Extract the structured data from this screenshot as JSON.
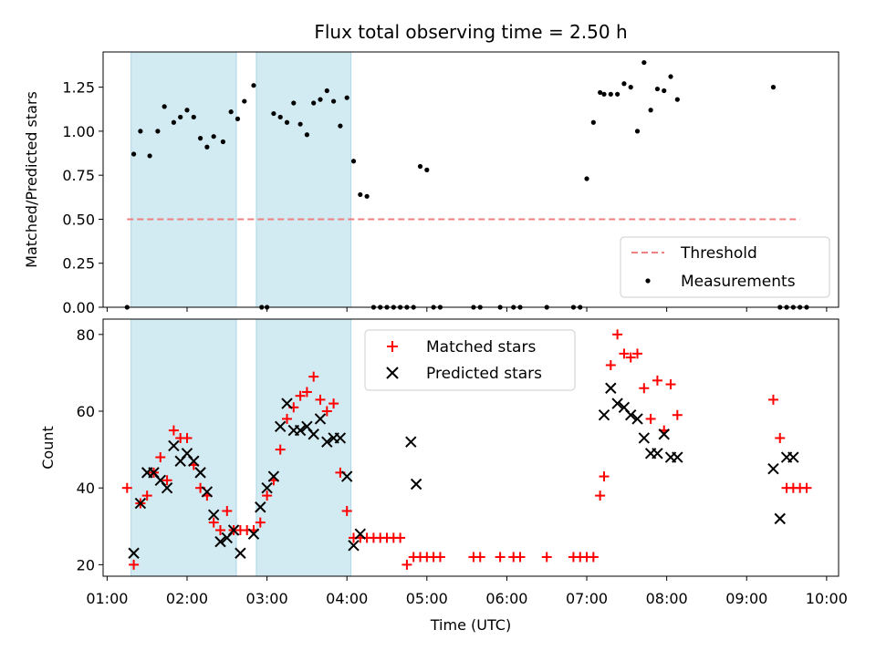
{
  "colors": {
    "threshold": "#f08080",
    "measurements": "#000000",
    "matched": "#ff0000",
    "predicted": "#000000",
    "shade": "#add8e6"
  },
  "chart_data": [
    {
      "type": "scatter",
      "title": "Flux total observing time = 2.50 h",
      "xlabel": "",
      "ylabel": "Matched/Predicted stars",
      "ylim": [
        0,
        1.45
      ],
      "xlim": [
        "00:57",
        "10:09"
      ],
      "yticks": [
        "0.00",
        "0.25",
        "0.50",
        "0.75",
        "1.00",
        "1.25"
      ],
      "shaded_intervals": [
        [
          "01:18",
          "02:37"
        ],
        [
          "02:52",
          "04:03"
        ]
      ],
      "legend_position": "lower right",
      "legend": [
        "Threshold",
        "Measurements"
      ],
      "threshold": {
        "name": "Threshold",
        "y": 0.5,
        "x_start": "01:15",
        "x_end": "09:40",
        "style": "dashed"
      },
      "series": [
        {
          "name": "Measurements",
          "marker": "dot",
          "x": [
            "01:15",
            "01:20",
            "01:25",
            "01:32",
            "01:38",
            "01:43",
            "01:50",
            "01:55",
            "02:00",
            "02:05",
            "02:10",
            "02:15",
            "02:20",
            "02:27",
            "02:33",
            "02:38",
            "02:43",
            "02:50",
            "02:56",
            "03:00",
            "03:05",
            "03:10",
            "03:15",
            "03:20",
            "03:25",
            "03:30",
            "03:35",
            "03:40",
            "03:45",
            "03:50",
            "03:55",
            "04:00",
            "04:05",
            "04:10",
            "04:15",
            "04:20",
            "04:25",
            "04:30",
            "04:35",
            "04:40",
            "04:45",
            "04:50",
            "04:55",
            "05:00",
            "05:05",
            "05:10",
            "05:35",
            "05:40",
            "05:55",
            "06:05",
            "06:10",
            "06:30",
            "06:50",
            "06:55",
            "07:00",
            "07:05",
            "07:10",
            "07:13",
            "07:18",
            "07:23",
            "07:28",
            "07:33",
            "07:38",
            "07:43",
            "07:48",
            "07:53",
            "07:58",
            "08:03",
            "08:08",
            "09:20",
            "09:25",
            "09:30",
            "09:35",
            "09:40",
            "09:45"
          ],
          "y": [
            0.0,
            0.87,
            1.0,
            0.86,
            1.0,
            1.14,
            1.05,
            1.08,
            1.12,
            1.08,
            0.96,
            0.91,
            0.97,
            0.94,
            1.11,
            1.07,
            1.17,
            1.26,
            0.0,
            0.0,
            1.1,
            1.08,
            1.05,
            1.16,
            1.04,
            0.98,
            1.16,
            1.18,
            1.23,
            1.17,
            1.03,
            1.19,
            0.83,
            0.64,
            0.63,
            0.0,
            0.0,
            0.0,
            0.0,
            0.0,
            0.0,
            0.0,
            0.8,
            0.78,
            0.0,
            0.0,
            0.0,
            0.0,
            0.0,
            0.0,
            0.0,
            0.0,
            0.0,
            0.0,
            0.73,
            1.05,
            1.22,
            1.21,
            1.21,
            1.21,
            1.27,
            1.25,
            1.0,
            1.39,
            1.12,
            1.24,
            1.23,
            1.31,
            1.18,
            1.25,
            0.0,
            0.0,
            0.0,
            0.0,
            0.0
          ]
        }
      ]
    },
    {
      "type": "scatter",
      "title": "",
      "xlabel": "Time (UTC)",
      "ylabel": "Count",
      "ylim": [
        17,
        84
      ],
      "xlim": [
        "00:57",
        "10:09"
      ],
      "xticks": [
        "01:00",
        "02:00",
        "03:00",
        "04:00",
        "05:00",
        "06:00",
        "07:00",
        "08:00",
        "09:00",
        "10:00"
      ],
      "yticks": [
        "20",
        "40",
        "60",
        "80"
      ],
      "shaded_intervals": [
        [
          "01:18",
          "02:37"
        ],
        [
          "02:52",
          "04:03"
        ]
      ],
      "legend_position": "upper center",
      "legend": [
        "Matched stars",
        "Predicted stars"
      ],
      "series": [
        {
          "name": "Matched stars",
          "marker": "plus",
          "x": [
            "01:15",
            "01:20",
            "01:25",
            "01:30",
            "01:35",
            "01:40",
            "01:45",
            "01:50",
            "01:55",
            "02:00",
            "02:05",
            "02:10",
            "02:15",
            "02:20",
            "02:25",
            "02:30",
            "02:35",
            "02:40",
            "02:45",
            "02:50",
            "02:55",
            "03:00",
            "03:05",
            "03:10",
            "03:15",
            "03:20",
            "03:25",
            "03:30",
            "03:35",
            "03:40",
            "03:45",
            "03:50",
            "03:55",
            "04:00",
            "04:05",
            "04:10",
            "04:15",
            "04:20",
            "04:25",
            "04:30",
            "04:35",
            "04:40",
            "04:45",
            "04:50",
            "04:55",
            "05:00",
            "05:05",
            "05:10",
            "05:35",
            "05:40",
            "05:55",
            "06:05",
            "06:10",
            "06:30",
            "06:50",
            "06:55",
            "07:00",
            "07:05",
            "07:10",
            "07:13",
            "07:18",
            "07:23",
            "07:28",
            "07:33",
            "07:38",
            "07:43",
            "07:48",
            "07:53",
            "07:58",
            "08:03",
            "08:08",
            "09:20",
            "09:25",
            "09:30",
            "09:35",
            "09:40",
            "09:45"
          ],
          "y": [
            40,
            20,
            36,
            38,
            44,
            48,
            42,
            55,
            53,
            53,
            46,
            40,
            38,
            31,
            29,
            34,
            29,
            29,
            29,
            29,
            31,
            38,
            42,
            50,
            58,
            61,
            64,
            65,
            69,
            63,
            60,
            62,
            44,
            34,
            27,
            27,
            27,
            27,
            27,
            27,
            27,
            27,
            20,
            22,
            22,
            22,
            22,
            22,
            22,
            22,
            22,
            22,
            22,
            22,
            22,
            22,
            22,
            22,
            38,
            43,
            72,
            80,
            75,
            74,
            75,
            66,
            58,
            68,
            55,
            67,
            59,
            63,
            53,
            40,
            40,
            40,
            40
          ]
        },
        {
          "name": "Predicted stars",
          "marker": "x",
          "x": [
            "01:20",
            "01:25",
            "01:30",
            "01:35",
            "01:40",
            "01:45",
            "01:50",
            "01:55",
            "02:00",
            "02:05",
            "02:10",
            "02:15",
            "02:20",
            "02:25",
            "02:30",
            "02:35",
            "02:40",
            "02:50",
            "02:55",
            "03:00",
            "03:05",
            "03:10",
            "03:15",
            "03:20",
            "03:25",
            "03:30",
            "03:35",
            "03:40",
            "03:45",
            "03:50",
            "03:55",
            "04:00",
            "04:05",
            "04:10",
            "04:48",
            "04:52",
            "07:13",
            "07:18",
            "07:23",
            "07:28",
            "07:33",
            "07:38",
            "07:43",
            "07:48",
            "07:53",
            "07:58",
            "08:03",
            "08:08",
            "09:20",
            "09:25",
            "09:30",
            "09:35"
          ],
          "y": [
            23,
            36,
            44,
            44,
            42,
            40,
            51,
            47,
            49,
            47,
            44,
            39,
            33,
            26,
            27,
            29,
            23,
            28,
            35,
            40,
            43,
            56,
            62,
            55,
            55,
            56,
            54,
            58,
            52,
            53,
            53,
            43,
            25,
            28,
            52,
            41,
            59,
            66,
            62,
            61,
            59,
            58,
            53,
            49,
            49,
            54,
            48,
            48,
            45,
            32,
            48,
            48
          ]
        }
      ]
    }
  ]
}
